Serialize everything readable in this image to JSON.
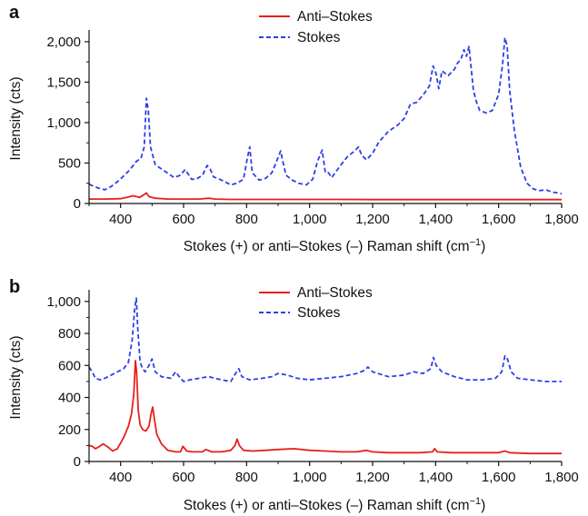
{
  "chart_data": [
    {
      "panel": "a",
      "type": "line",
      "xlabel": "Stokes (+) or anti–Stokes (–) Raman shift (cm",
      "xlabel_sup": "−1",
      "xlabel_end": ")",
      "ylabel": "Intensity (cts)",
      "xlim": [
        300,
        1800
      ],
      "ylim": [
        0,
        2100
      ],
      "xticks": [
        400,
        600,
        800,
        1000,
        1200,
        1400,
        1600,
        1800
      ],
      "xtick_labels": [
        "400",
        "600",
        "800",
        "1,000",
        "1,200",
        "1,400",
        "1,600",
        "1,800"
      ],
      "yticks": [
        0,
        500,
        1000,
        1500,
        2000
      ],
      "ytick_labels": [
        "0",
        "500",
        "1,000",
        "1,500",
        "2,000"
      ],
      "legend_position": "top-center",
      "series": [
        {
          "name": "Anti–Stokes",
          "color": "#e8201c",
          "dash": "solid",
          "x": [
            300,
            350,
            400,
            420,
            440,
            460,
            475,
            482,
            490,
            510,
            550,
            600,
            650,
            680,
            700,
            750,
            800,
            900,
            1000,
            1100,
            1200,
            1300,
            1400,
            1500,
            1600,
            1700,
            1800
          ],
          "y": [
            55,
            55,
            60,
            75,
            95,
            75,
            110,
            130,
            85,
            65,
            55,
            55,
            55,
            65,
            55,
            50,
            50,
            50,
            50,
            50,
            48,
            48,
            48,
            48,
            48,
            48,
            48
          ]
        },
        {
          "name": "Stokes",
          "color": "#2f3fe8",
          "dash": "dashed",
          "x": [
            300,
            310,
            330,
            350,
            370,
            390,
            410,
            430,
            450,
            465,
            475,
            482,
            488,
            495,
            510,
            540,
            570,
            590,
            605,
            615,
            625,
            640,
            660,
            675,
            685,
            695,
            720,
            750,
            770,
            790,
            802,
            810,
            818,
            840,
            860,
            880,
            895,
            908,
            915,
            925,
            945,
            965,
            990,
            1010,
            1025,
            1040,
            1050,
            1060,
            1070,
            1085,
            1100,
            1120,
            1140,
            1155,
            1165,
            1180,
            1200,
            1220,
            1250,
            1280,
            1300,
            1320,
            1340,
            1360,
            1380,
            1392,
            1402,
            1410,
            1420,
            1440,
            1460,
            1470,
            1480,
            1490,
            1498,
            1506,
            1512,
            1520,
            1530,
            1540,
            1560,
            1580,
            1600,
            1612,
            1620,
            1627,
            1635,
            1650,
            1670,
            1690,
            1710,
            1730,
            1750,
            1770,
            1790,
            1800
          ],
          "y": [
            240,
            220,
            190,
            170,
            210,
            270,
            340,
            420,
            520,
            560,
            700,
            1300,
            1150,
            700,
            480,
            400,
            320,
            350,
            420,
            360,
            300,
            300,
            350,
            470,
            420,
            330,
            290,
            230,
            250,
            300,
            550,
            700,
            380,
            290,
            310,
            380,
            520,
            650,
            520,
            350,
            290,
            250,
            230,
            300,
            520,
            660,
            380,
            380,
            320,
            400,
            480,
            580,
            640,
            700,
            600,
            540,
            620,
            760,
            890,
            970,
            1050,
            1230,
            1250,
            1340,
            1450,
            1700,
            1600,
            1420,
            1640,
            1580,
            1660,
            1740,
            1780,
            1900,
            1820,
            1940,
            1700,
            1400,
            1250,
            1150,
            1120,
            1150,
            1350,
            1700,
            2050,
            1950,
            1400,
            900,
            450,
            250,
            180,
            160,
            170,
            140,
            130,
            120
          ]
        }
      ]
    },
    {
      "panel": "b",
      "type": "line",
      "xlabel": "Stokes (+) or anti–Stokes (–) Raman shift (cm",
      "xlabel_sup": "−1",
      "xlabel_end": ")",
      "ylabel": "Intensity (cts)",
      "xlim": [
        300,
        1800
      ],
      "ylim": [
        0,
        1050
      ],
      "xticks": [
        400,
        600,
        800,
        1000,
        1200,
        1400,
        1600,
        1800
      ],
      "xtick_labels": [
        "400",
        "600",
        "800",
        "1,000",
        "1,200",
        "1,400",
        "1,600",
        "1,800"
      ],
      "yticks": [
        0,
        200,
        400,
        600,
        800,
        1000
      ],
      "ytick_labels": [
        "0",
        "200",
        "400",
        "600",
        "800",
        "1,000"
      ],
      "legend_position": "top-center",
      "series": [
        {
          "name": "Anti–Stokes",
          "color": "#e8201c",
          "dash": "solid",
          "x": [
            300,
            310,
            320,
            330,
            345,
            360,
            375,
            390,
            410,
            425,
            435,
            442,
            447,
            451,
            456,
            462,
            470,
            480,
            490,
            497,
            502,
            507,
            515,
            530,
            550,
            575,
            590,
            598,
            610,
            630,
            660,
            670,
            690,
            720,
            750,
            763,
            770,
            777,
            790,
            820,
            860,
            900,
            950,
            1000,
            1050,
            1100,
            1150,
            1180,
            1200,
            1250,
            1300,
            1350,
            1390,
            1397,
            1405,
            1450,
            1500,
            1550,
            1600,
            1620,
            1635,
            1700,
            1800
          ],
          "y": [
            100,
            95,
            80,
            90,
            110,
            90,
            65,
            80,
            150,
            220,
            300,
            420,
            630,
            560,
            320,
            230,
            200,
            190,
            220,
            300,
            340,
            270,
            170,
            110,
            70,
            60,
            60,
            95,
            65,
            60,
            60,
            75,
            60,
            60,
            70,
            100,
            140,
            100,
            70,
            65,
            70,
            75,
            80,
            70,
            65,
            60,
            60,
            70,
            60,
            55,
            55,
            55,
            60,
            80,
            60,
            55,
            55,
            55,
            55,
            65,
            55,
            50,
            50
          ]
        },
        {
          "name": "Stokes",
          "color": "#2f3fe8",
          "dash": "dashed",
          "x": [
            300,
            310,
            320,
            335,
            350,
            370,
            390,
            410,
            425,
            437,
            445,
            450,
            455,
            462,
            470,
            478,
            490,
            500,
            510,
            530,
            560,
            575,
            590,
            600,
            620,
            650,
            680,
            700,
            720,
            750,
            765,
            775,
            785,
            810,
            850,
            880,
            900,
            930,
            960,
            1000,
            1050,
            1100,
            1150,
            1175,
            1185,
            1200,
            1250,
            1300,
            1330,
            1360,
            1385,
            1393,
            1402,
            1420,
            1460,
            1500,
            1550,
            1590,
            1610,
            1620,
            1628,
            1640,
            1660,
            1700,
            1750,
            1800
          ],
          "y": [
            590,
            560,
            520,
            510,
            520,
            540,
            560,
            580,
            620,
            760,
            960,
            1020,
            820,
            620,
            580,
            560,
            600,
            640,
            560,
            530,
            520,
            560,
            520,
            500,
            510,
            520,
            530,
            520,
            510,
            500,
            550,
            580,
            530,
            510,
            520,
            530,
            550,
            540,
            520,
            510,
            520,
            530,
            550,
            570,
            590,
            560,
            530,
            540,
            560,
            550,
            580,
            650,
            600,
            560,
            530,
            510,
            510,
            520,
            560,
            660,
            640,
            560,
            520,
            510,
            500,
            500
          ]
        }
      ]
    }
  ]
}
